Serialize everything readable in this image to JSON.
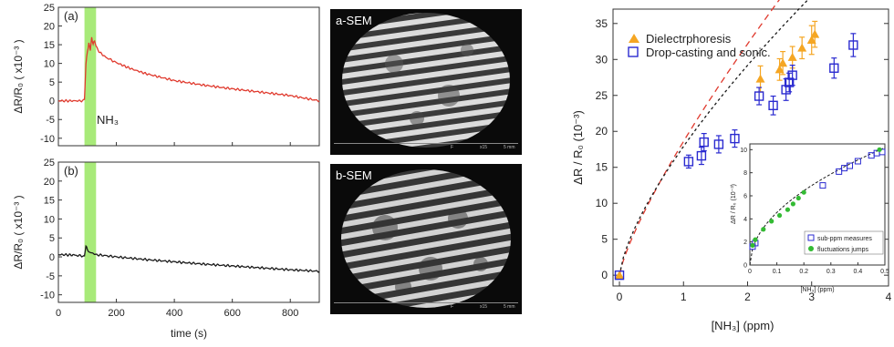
{
  "colors": {
    "red": "#e03a2e",
    "black": "#1a1a1a",
    "green_band": "#9ee86a",
    "orange": "#f5a623",
    "blue": "#2a2ad0",
    "green_dot": "#33bb33"
  },
  "panel_a": {
    "label": "(a)",
    "annotation": "NH₃",
    "ylabel": "ΔR/R₀ ( x10⁻³ )"
  },
  "panel_b": {
    "label": "(b)",
    "ylabel": "ΔR/R₀ ( x10⁻³ )",
    "xlabel": "time (s)"
  },
  "sem_a": {
    "label": "a-SEM",
    "scale_f": "F",
    "scale_mag": "x15",
    "scale_len": "5 mm"
  },
  "sem_b": {
    "label": "b-SEM",
    "scale_f": "F",
    "scale_mag": "x15",
    "scale_len": "5 mm"
  },
  "chart_data": [
    {
      "type": "line",
      "id": "a",
      "xlim": [
        0,
        900
      ],
      "ylim": [
        -12,
        25
      ],
      "xticks": [
        0,
        200,
        400,
        600,
        800
      ],
      "yticks": [
        -10,
        -5,
        0,
        5,
        10,
        15,
        20,
        25
      ],
      "x": [
        0,
        80,
        90,
        95,
        100,
        105,
        110,
        115,
        120,
        125,
        130,
        140,
        160,
        200,
        250,
        300,
        400,
        500,
        600,
        700,
        800,
        900
      ],
      "y": [
        0,
        0,
        0.3,
        10,
        13,
        15.5,
        13.5,
        17,
        15,
        16.2,
        14.5,
        13.2,
        11.8,
        10.2,
        8.6,
        7.3,
        5.4,
        4.2,
        3.2,
        2.3,
        1.4,
        0
      ],
      "band": [
        90,
        130
      ]
    },
    {
      "type": "line",
      "id": "b",
      "xlim": [
        0,
        900
      ],
      "ylim": [
        -12,
        25
      ],
      "xticks": [
        0,
        200,
        400,
        600,
        800
      ],
      "yticks": [
        -10,
        -5,
        0,
        5,
        10,
        15,
        20,
        25
      ],
      "x": [
        0,
        50,
        90,
        95,
        100,
        110,
        130,
        200,
        300,
        400,
        500,
        600,
        700,
        800,
        900
      ],
      "y": [
        0.6,
        0.5,
        0.2,
        3,
        1.8,
        1.2,
        0.6,
        0,
        -0.7,
        -1.3,
        -1.9,
        -2.4,
        -2.9,
        -3.4,
        -3.8
      ],
      "band": [
        90,
        130
      ]
    },
    {
      "type": "scatter",
      "id": "main",
      "xlabel": "[NH₃] (ppm)",
      "ylabel": "ΔR / R₀ (10⁻³)",
      "xlim": [
        -0.1,
        4.2
      ],
      "ylim": [
        -1.5,
        37
      ],
      "xticks": [
        0,
        1,
        2,
        3
      ],
      "yticks": [
        0,
        5,
        10,
        15,
        20,
        25,
        30,
        35
      ],
      "tick_x_right": "4",
      "series": [
        {
          "name": "Dielectrphoresis",
          "marker": "triangle",
          "color": "#f5a623",
          "x": [
            0,
            2.2,
            2.5,
            2.55,
            2.7,
            2.85,
            3.0,
            3.05
          ],
          "y": [
            0,
            27.3,
            28.6,
            29.5,
            30.3,
            31.6,
            32.7,
            33.5
          ],
          "err": [
            0,
            1.8,
            1.5,
            1.6,
            1.5,
            1.5,
            2.0,
            1.8
          ]
        },
        {
          "name": "Drop-casting and sonic.",
          "marker": "square",
          "color": "#2a2ad0",
          "x": [
            0,
            1.08,
            1.28,
            1.32,
            1.55,
            1.8,
            2.18,
            2.4,
            2.6,
            2.65,
            2.7,
            3.35,
            3.65
          ],
          "y": [
            0,
            15.8,
            16.6,
            18.5,
            18.2,
            19.0,
            24.9,
            23.6,
            25.8,
            26.8,
            27.8,
            28.8,
            32.0
          ],
          "err": [
            0,
            0.9,
            1.2,
            1.2,
            1.2,
            1.2,
            1.2,
            1.3,
            1.5,
            1.3,
            1.4,
            1.4,
            1.6
          ]
        }
      ],
      "fits": [
        {
          "color": "#e03a2e",
          "dash": "7,5",
          "a": 18.6,
          "k": 0.79,
          "xmax": 3.05
        },
        {
          "color": "#1a1a1a",
          "dash": "3,3",
          "a": 17.9,
          "k": 0.705,
          "xmax": 3.7
        }
      ]
    },
    {
      "type": "scatter",
      "id": "inset",
      "xlabel": "[NH₃] (ppm)",
      "ylabel": "ΔR / R₀ (10⁻³)",
      "xlim": [
        0,
        0.5
      ],
      "ylim": [
        0,
        10.5
      ],
      "xticks": [
        0,
        0.1,
        0.2,
        0.3,
        0.4,
        0.5
      ],
      "xtick_labels": [
        "0",
        "0.1",
        "0.2",
        "0.3",
        "0.4",
        "0.5"
      ],
      "yticks": [
        0,
        2,
        4,
        6,
        8,
        10
      ],
      "series": [
        {
          "name": "sub-ppm measures",
          "marker": "square",
          "color": "#2a2ad0",
          "x": [
            0.01,
            0.02,
            0.27,
            0.33,
            0.35,
            0.37,
            0.4,
            0.45,
            0.47,
            0.49
          ],
          "y": [
            1.6,
            1.9,
            6.9,
            8.1,
            8.4,
            8.6,
            9.0,
            9.5,
            9.7,
            9.8
          ]
        },
        {
          "name": "fluctuations jumps",
          "marker": "circle",
          "color": "#33bb33",
          "x": [
            0.01,
            0.02,
            0.05,
            0.08,
            0.11,
            0.14,
            0.16,
            0.18,
            0.2,
            0.48
          ],
          "y": [
            1.7,
            2.2,
            3.1,
            3.8,
            4.3,
            4.8,
            5.3,
            5.8,
            6.3,
            10.0
          ]
        }
      ],
      "fit": {
        "a": 14.4,
        "k": 0.5
      }
    }
  ]
}
